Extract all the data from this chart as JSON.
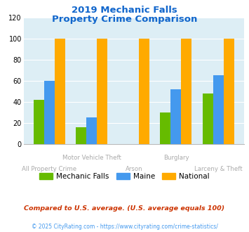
{
  "title_line1": "2019 Mechanic Falls",
  "title_line2": "Property Crime Comparison",
  "categories": [
    "All Property Crime",
    "Motor Vehicle Theft",
    "Arson",
    "Burglary",
    "Larceny & Theft"
  ],
  "cat_row1": [
    "",
    "Motor Vehicle Theft",
    "",
    "Burglary",
    ""
  ],
  "cat_row2": [
    "All Property Crime",
    "",
    "Arson",
    "",
    "Larceny & Theft"
  ],
  "mechanic_falls": [
    42,
    16,
    0,
    30,
    48
  ],
  "maine": [
    60,
    25,
    0,
    52,
    65
  ],
  "national": [
    100,
    100,
    100,
    100,
    100
  ],
  "color_mechanic": "#66bb00",
  "color_maine": "#4499ee",
  "color_national": "#ffaa00",
  "ylim": [
    0,
    120
  ],
  "yticks": [
    0,
    20,
    40,
    60,
    80,
    100,
    120
  ],
  "background_color": "#ddeef5",
  "title_color": "#1166cc",
  "xlabel_color": "#aaaaaa",
  "legend_label_mechanic": "Mechanic Falls",
  "legend_label_maine": "Maine",
  "legend_label_national": "National",
  "footnote1": "Compared to U.S. average. (U.S. average equals 100)",
  "footnote2": "© 2025 CityRating.com - https://www.cityrating.com/crime-statistics/",
  "footnote1_color": "#cc3300",
  "footnote2_color": "#4499ee"
}
